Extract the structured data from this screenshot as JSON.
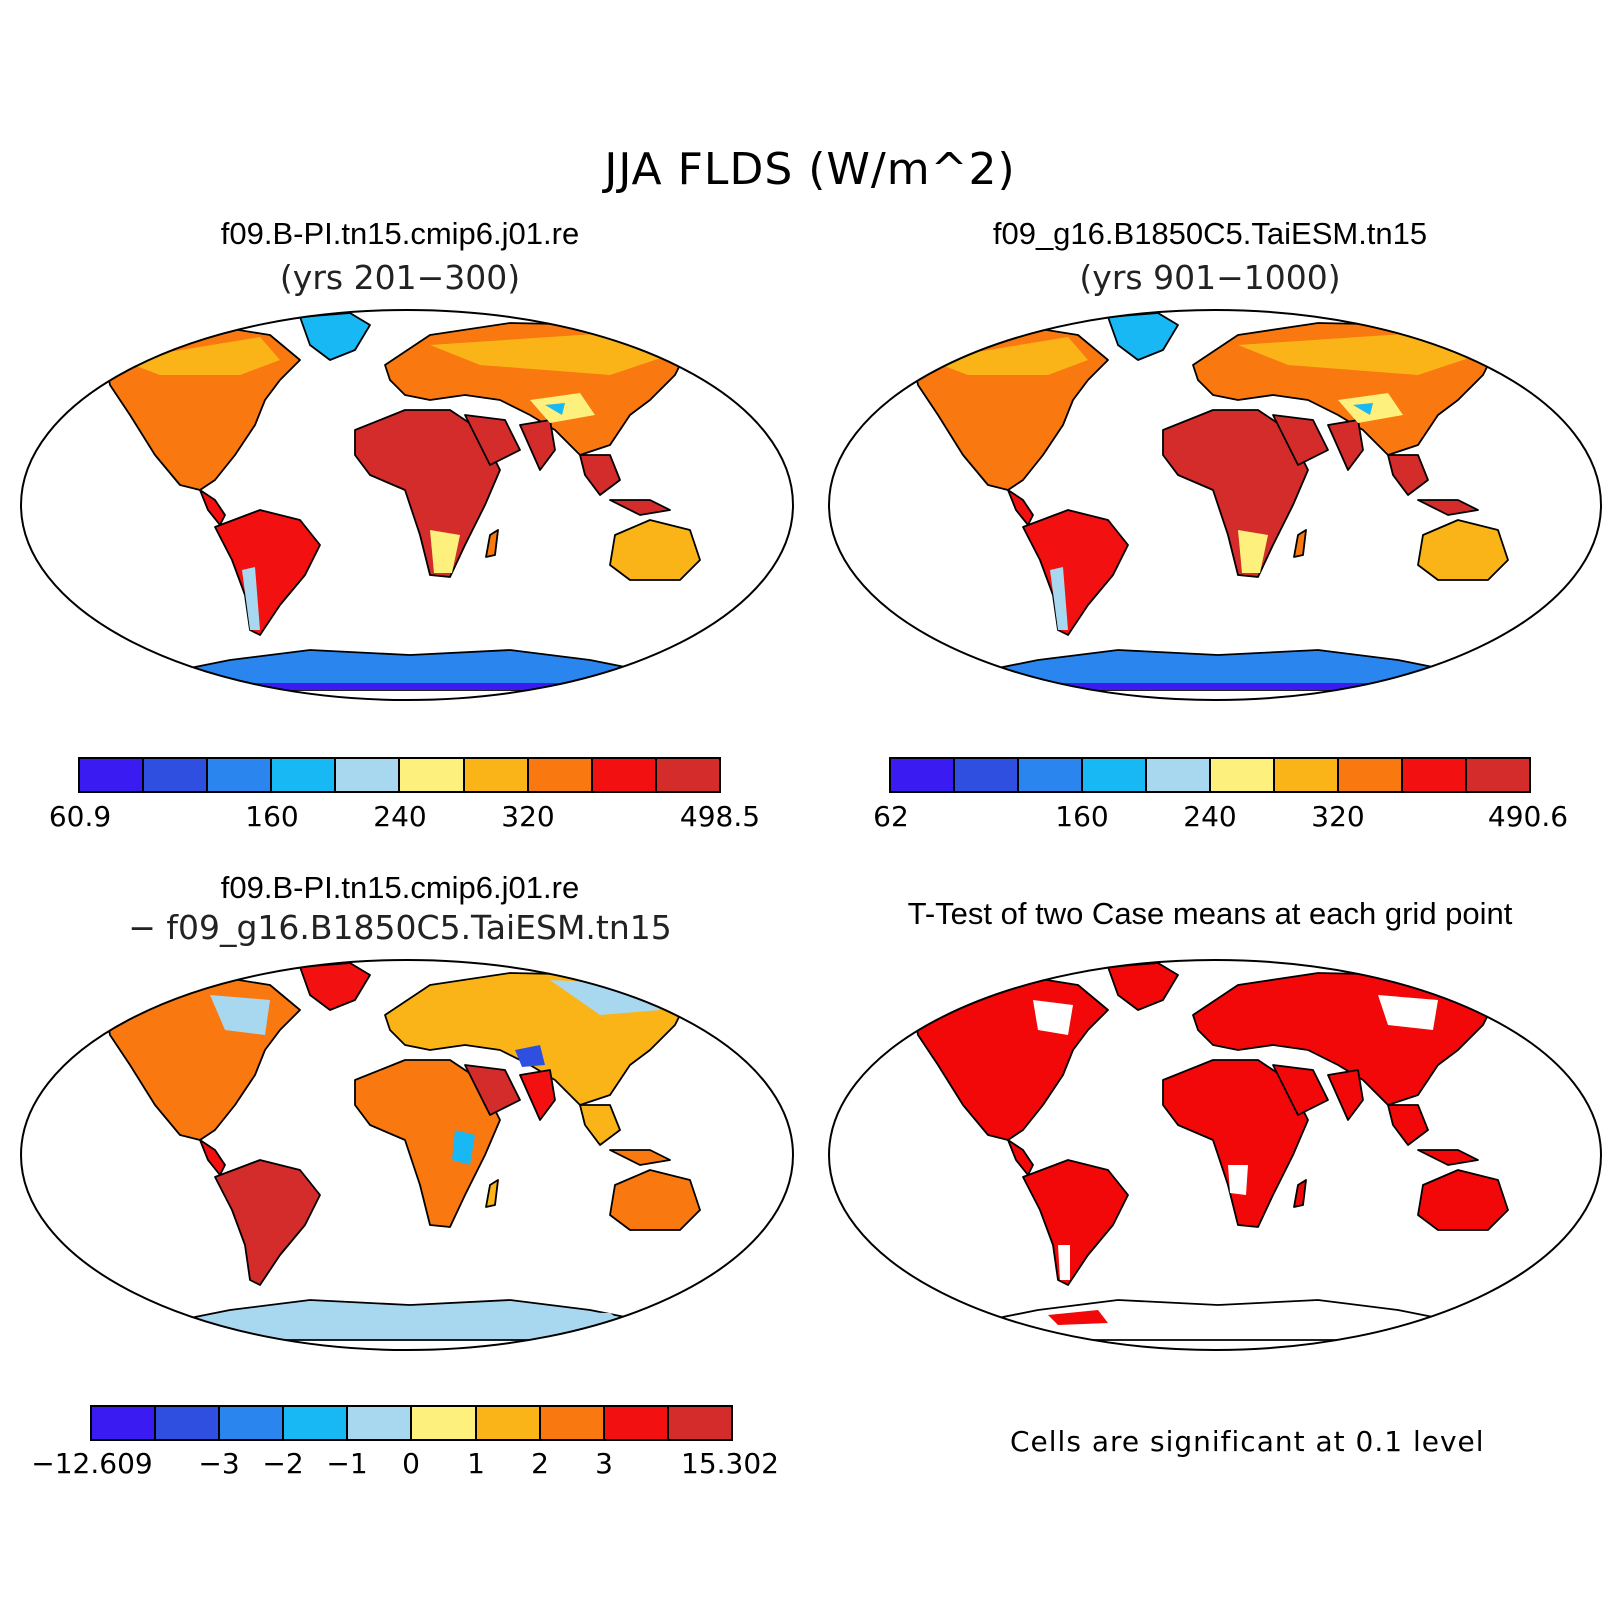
{
  "title": "JJA FLDS (W/m^2)",
  "colors": {
    "scale": [
      "#3a1cf2",
      "#2f4fe0",
      "#2a85ee",
      "#18b8f5",
      "#a8d8ef",
      "#fdf07c",
      "#fab418",
      "#f97810",
      "#f31010",
      "#d42b2b"
    ],
    "significant": "#f20808",
    "antarctica_top": "#2a6ae6",
    "antarctica_diff": "#f6b23e"
  },
  "panels": [
    {
      "id": "case1",
      "title": "f09.B-PI.tn15.cmip6.j01.re",
      "subtitle": "(yrs 201−300)",
      "colorbar": {
        "labels": [
          "60.9",
          "160",
          "240",
          "320",
          "498.5"
        ]
      }
    },
    {
      "id": "case2",
      "title": "f09_g16.B1850C5.TaiESM.tn15",
      "subtitle": "(yrs 901−1000)",
      "colorbar": {
        "labels": [
          "62",
          "160",
          "240",
          "320",
          "490.6"
        ]
      }
    },
    {
      "id": "difference",
      "title": "f09.B-PI.tn15.cmip6.j01.re",
      "subtitle": "− f09_g16.B1850C5.TaiESM.tn15",
      "colorbar": {
        "labels": [
          "−12.609",
          "−3",
          "−2",
          "−1",
          "0",
          "1",
          "2",
          "3",
          "15.302"
        ]
      }
    },
    {
      "id": "ttest",
      "title": "T-Test of two Case means at each grid point",
      "note": "Cells are significant at 0.1 level"
    }
  ]
}
